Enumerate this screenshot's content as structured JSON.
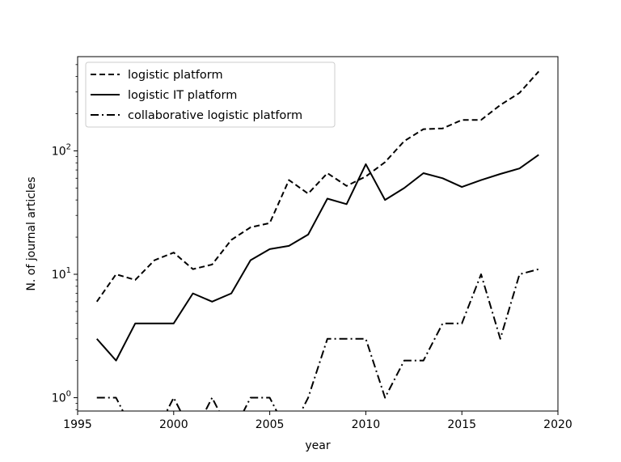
{
  "chart_data": {
    "type": "line",
    "title": "",
    "xlabel": "year",
    "ylabel": "N. of journal articles",
    "xlim": [
      1995,
      2020
    ],
    "ylim": [
      0.78,
      580
    ],
    "yscale": "log",
    "grid": false,
    "legend_position": "top-left",
    "x_ticks": [
      1995,
      2000,
      2005,
      2010,
      2015,
      2020
    ],
    "x_tick_labels": [
      "1995",
      "2000",
      "2005",
      "2010",
      "2015",
      "2020"
    ],
    "y_ticks": [
      1,
      10,
      100
    ],
    "y_tick_labels": [
      {
        "base": "10",
        "exp": "0"
      },
      {
        "base": "10",
        "exp": "1"
      },
      {
        "base": "10",
        "exp": "2"
      }
    ],
    "series": [
      {
        "name": "logistic platform",
        "style": "dashed",
        "color": "#000000",
        "x": [
          1996,
          1997,
          1998,
          1999,
          2000,
          2001,
          2002,
          2003,
          2004,
          2005,
          2006,
          2007,
          2008,
          2009,
          2010,
          2011,
          2012,
          2013,
          2014,
          2015,
          2016,
          2017,
          2018,
          2019
        ],
        "y": [
          6,
          10,
          9,
          13,
          15,
          11,
          12,
          19,
          24,
          26,
          58,
          45,
          66,
          52,
          62,
          81,
          120,
          150,
          152,
          178,
          178,
          235,
          295,
          440
        ]
      },
      {
        "name": "logistic IT platform",
        "style": "solid",
        "color": "#000000",
        "x": [
          1996,
          1997,
          1998,
          1999,
          2000,
          2001,
          2002,
          2003,
          2004,
          2005,
          2006,
          2007,
          2008,
          2009,
          2010,
          2011,
          2012,
          2013,
          2014,
          2015,
          2016,
          2017,
          2018,
          2019
        ],
        "y": [
          3,
          2,
          4,
          4,
          4,
          7,
          6,
          7,
          13,
          16,
          17,
          21,
          41,
          37,
          78,
          40,
          50,
          66,
          60,
          51,
          58,
          65,
          72,
          93
        ]
      },
      {
        "name": "collaborative logistic platform",
        "style": "dashdot",
        "color": "#000000",
        "x": [
          1996,
          1997,
          1998,
          1999,
          2000,
          2001,
          2002,
          2003,
          2004,
          2005,
          2006,
          2007,
          2008,
          2009,
          2010,
          2011,
          2012,
          2013,
          2014,
          2015,
          2016,
          2017,
          2018,
          2019
        ],
        "y": [
          1,
          1,
          0,
          0,
          1,
          0,
          1,
          0,
          1,
          1,
          0,
          1,
          3,
          3,
          3,
          1,
          2,
          2,
          4,
          4,
          10,
          3,
          10,
          11
        ]
      }
    ]
  }
}
